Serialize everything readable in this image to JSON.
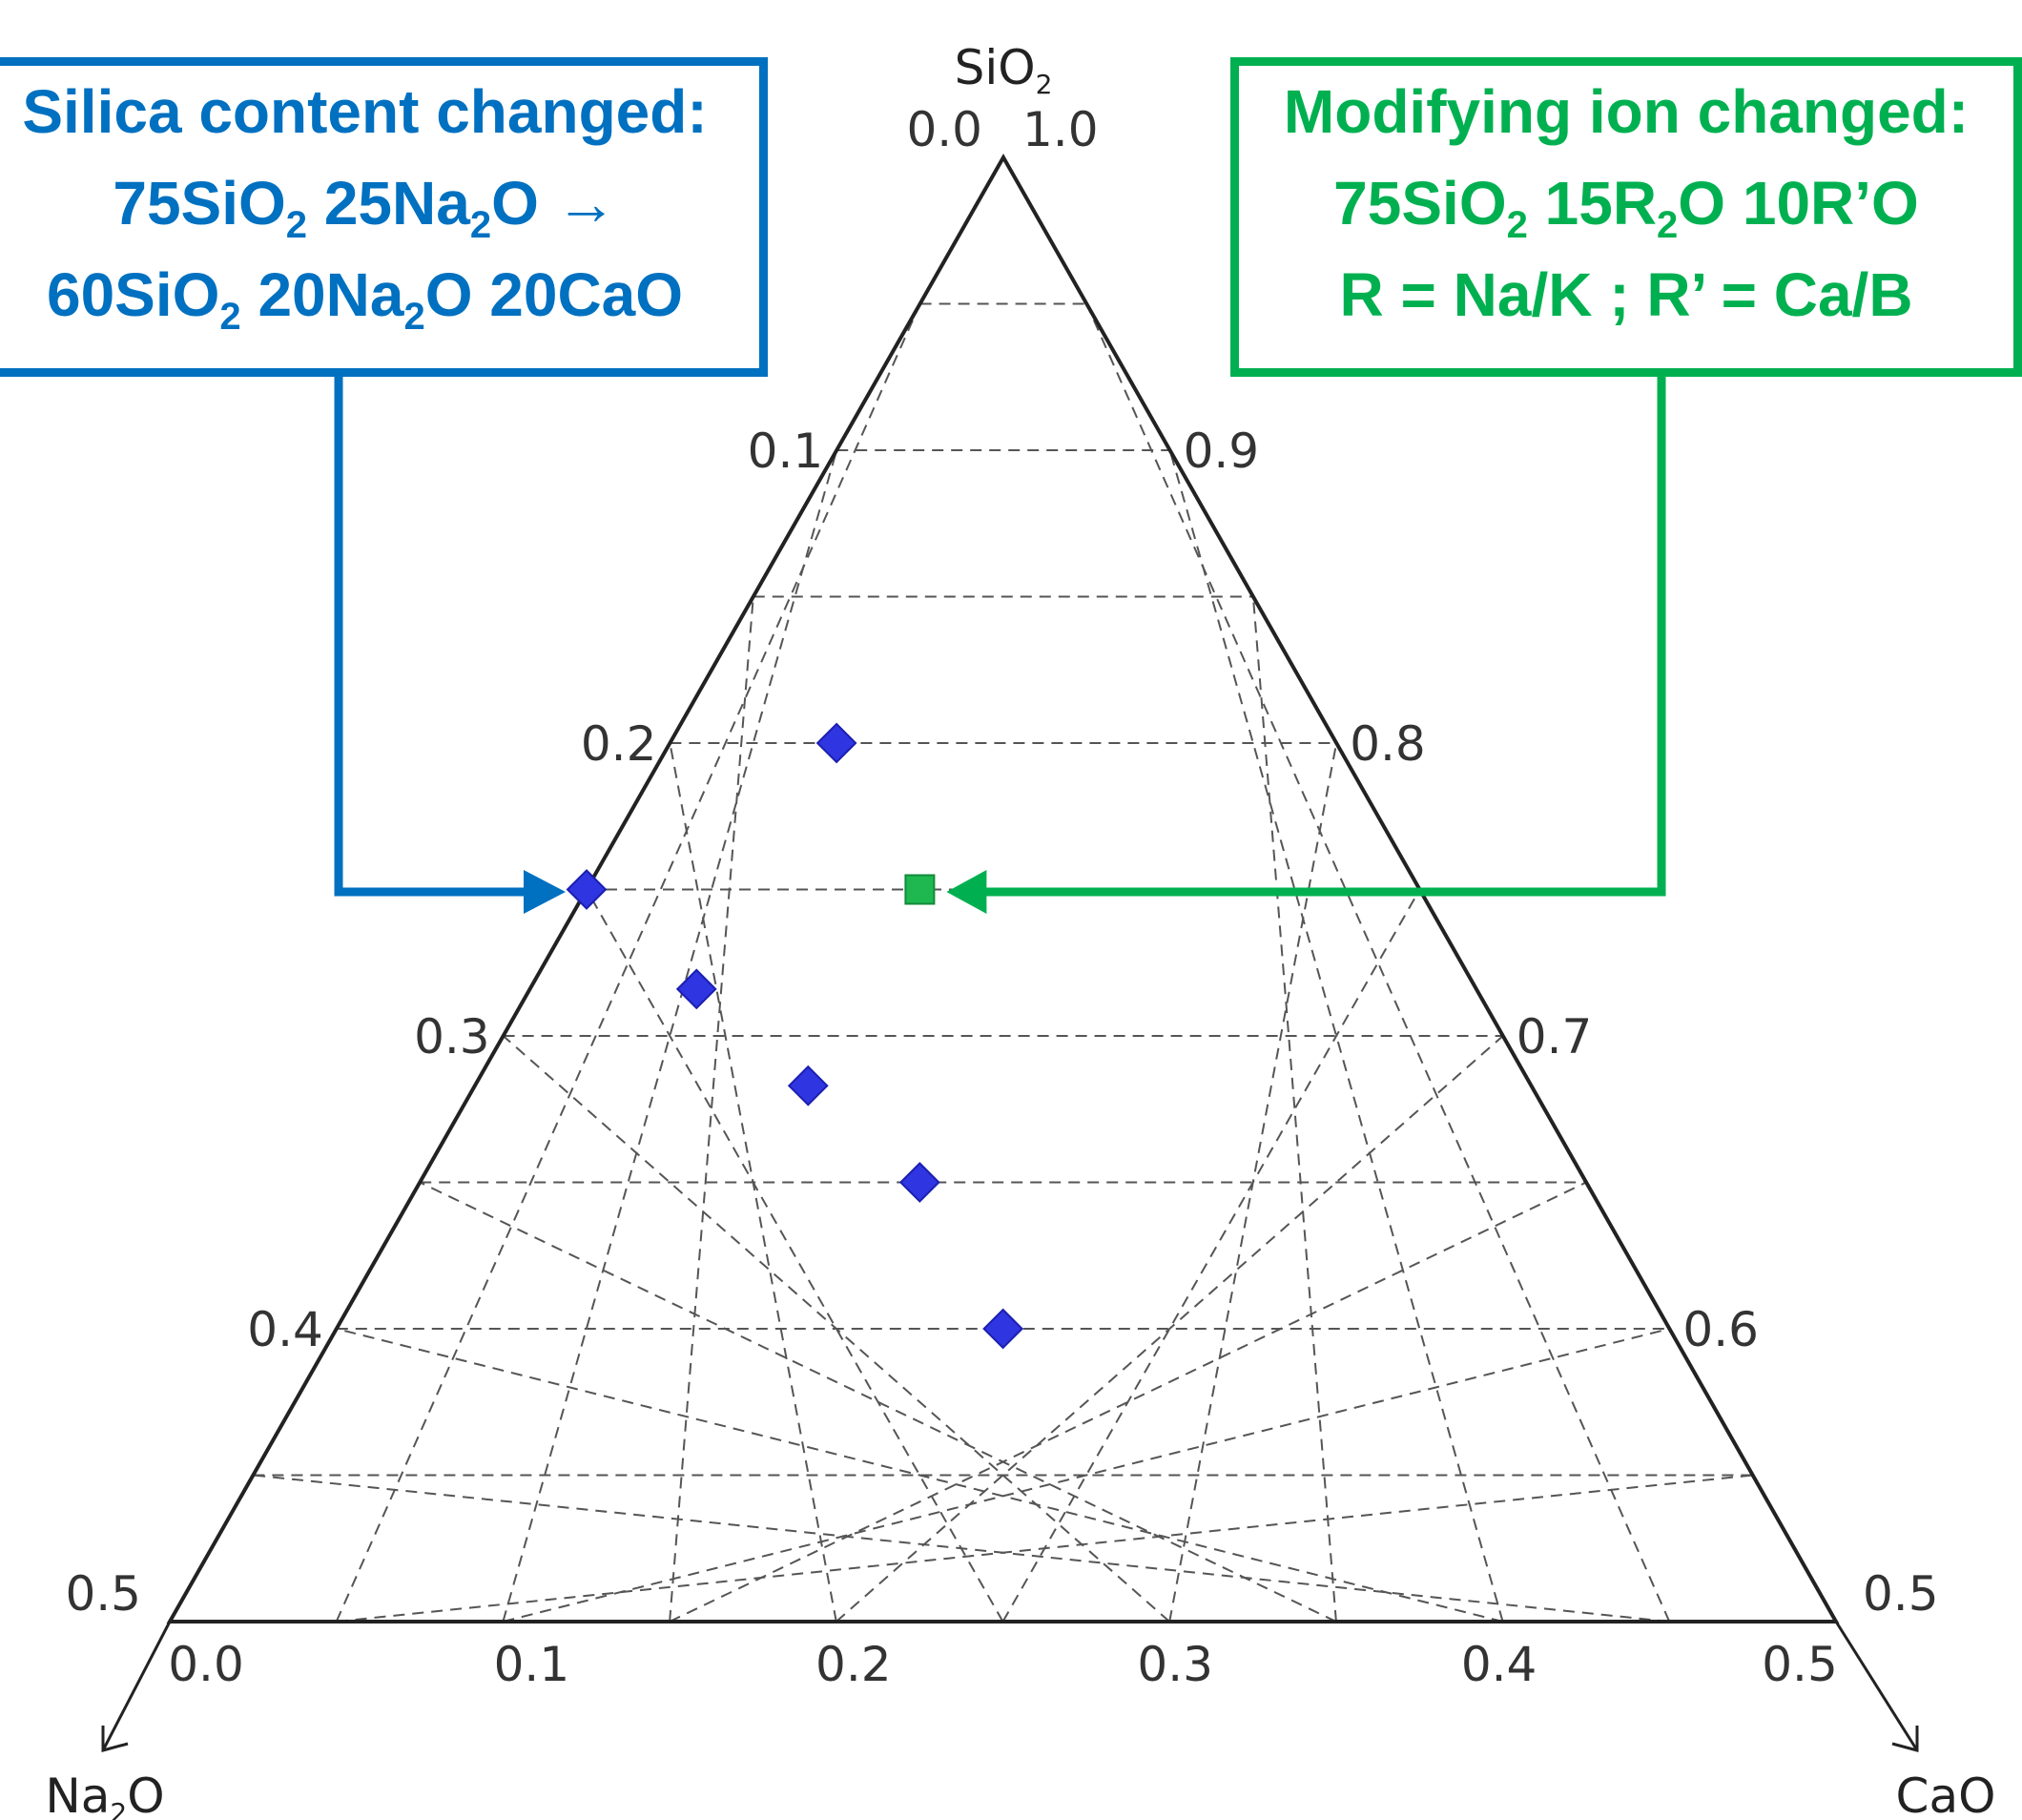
{
  "chart_data": {
    "type": "scatter",
    "subtype": "ternary",
    "corner_labels": {
      "top": "SiO2",
      "left": "Na2O",
      "right": "CaO"
    },
    "left_edge_ticks": [
      "0.0",
      "0.1",
      "0.2",
      "0.3",
      "0.4",
      "0.5"
    ],
    "right_edge_ticks": [
      "1.0",
      "0.9",
      "0.8",
      "0.7",
      "0.6",
      "0.5"
    ],
    "bottom_edge_ticks": [
      "0.0",
      "0.1",
      "0.2",
      "0.3",
      "0.4",
      "0.5"
    ],
    "ranges": {
      "SiO2": [
        0.5,
        1.0
      ],
      "Na2O": [
        0.0,
        0.5
      ],
      "CaO": [
        0.0,
        0.5
      ]
    },
    "grid": true,
    "series": [
      {
        "marker": "diamond",
        "color": "#2f35e0",
        "points": [
          {
            "SiO2": 0.8,
            "Na2O": 0.15,
            "CaO": 0.05
          },
          {
            "SiO2": 0.75,
            "Na2O": 0.25,
            "CaO": 0.0
          },
          {
            "SiO2": 0.716,
            "Na2O": 0.234,
            "CaO": 0.05
          },
          {
            "SiO2": 0.683,
            "Na2O": 0.217,
            "CaO": 0.1
          },
          {
            "SiO2": 0.65,
            "Na2O": 0.2,
            "CaO": 0.15
          },
          {
            "SiO2": 0.6,
            "Na2O": 0.2,
            "CaO": 0.2
          }
        ]
      },
      {
        "marker": "square",
        "color": "#1fb850",
        "points": [
          {
            "SiO2": 0.75,
            "Na2O": 0.15,
            "CaO": 0.1
          }
        ]
      }
    ]
  },
  "annotations": {
    "left_box": {
      "color": "#0070C0",
      "line1": "Silica content changed:",
      "line2": "75SiO₂ 25Na₂O →",
      "line3": "60SiO₂ 20Na₂O 20CaO"
    },
    "right_box": {
      "color": "#00B050",
      "line1": "Modifying ion changed:",
      "line2": "75SiO₂ 15R₂O 10R’O",
      "line3": "R = Na/K   ;   R’ = Ca/B"
    }
  }
}
